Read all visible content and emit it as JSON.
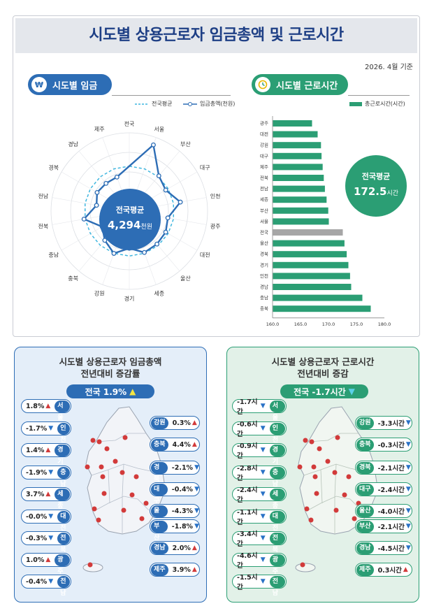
{
  "page_title": "시도별 상용근로자 임금총액 및 근로시간",
  "date_note": "2026. 4월 기준",
  "wage_section": {
    "label": "시도별 임금",
    "legend_avg": "전국평균",
    "legend_series": "임금총액(천원)",
    "center_label": "전국평균",
    "center_value": "4,294",
    "center_unit": "천원"
  },
  "hours_section": {
    "label": "시도별 근로시간",
    "legend_series": "총근로시간(시간)",
    "avg_label": "전국평균",
    "avg_value": "172.5",
    "avg_unit": "시간"
  },
  "chart_data": [
    {
      "type": "radar",
      "series": [
        {
          "name": "임금총액(천원)",
          "values": [
            4294,
            5600,
            4350,
            4150,
            4650,
            4000,
            4150,
            4200,
            4250,
            3900,
            4300,
            3950,
            3600,
            4350,
            3700,
            3900,
            3850,
            3850
          ]
        },
        {
          "name": "전국평균",
          "values": [
            4294,
            4294,
            4294,
            4294,
            4294,
            4294,
            4294,
            4294,
            4294,
            4294,
            4294,
            4294,
            4294,
            4294,
            4294,
            4294,
            4294,
            4294
          ]
        }
      ],
      "axes": [
        "전국",
        "서울",
        "부산",
        "대구",
        "인천",
        "광주",
        "대전",
        "울산",
        "세종",
        "경기",
        "강원",
        "충북",
        "충남",
        "전북",
        "전남",
        "경북",
        "경남",
        "제주"
      ],
      "ylim": [
        2000,
        6000
      ]
    },
    {
      "type": "bar",
      "orientation": "horizontal",
      "categories": [
        "광주",
        "대전",
        "강원",
        "대구",
        "제주",
        "전북",
        "전남",
        "세종",
        "부산",
        "서울",
        "전국",
        "울산",
        "경북",
        "경기",
        "인천",
        "경남",
        "충남",
        "충북"
      ],
      "values": [
        167.0,
        168.0,
        168.6,
        168.7,
        168.9,
        169.1,
        169.3,
        169.6,
        169.9,
        170.0,
        172.5,
        172.8,
        173.2,
        173.5,
        173.8,
        174.0,
        176.0,
        177.5
      ],
      "xlim": [
        160,
        180
      ],
      "xticks": [
        "160.0",
        "165.0",
        "170.0",
        "175.0",
        "180.0"
      ],
      "colors": {
        "default": "#2b9e74",
        "highlight": "#a6a6a6"
      }
    }
  ],
  "wage_change": {
    "title_line1": "시도별 상용근로자 임금총액",
    "title_line2": "전년대비 증감률",
    "total_label": "전국 1.9%",
    "left_tags": [
      {
        "value": "1.8%",
        "dir": "up",
        "region": "서울"
      },
      {
        "value": "-1.7%",
        "dir": "down",
        "region": "인천"
      },
      {
        "value": "1.4%",
        "dir": "up",
        "region": "경기"
      },
      {
        "value": "-1.9%",
        "dir": "down",
        "region": "충남"
      },
      {
        "value": "3.7%",
        "dir": "up",
        "region": "세종"
      },
      {
        "value": "-0.0%",
        "dir": "down",
        "region": "대전"
      },
      {
        "value": "-0.3%",
        "dir": "down",
        "region": "전북"
      },
      {
        "value": "1.0%",
        "dir": "up",
        "region": "광주"
      },
      {
        "value": "-0.4%",
        "dir": "down",
        "region": "전남"
      }
    ],
    "right_tags": [
      {
        "region": "강원",
        "value": "0.3%",
        "dir": "up"
      },
      {
        "region": "충북",
        "value": "4.4%",
        "dir": "up"
      },
      {
        "region": "경북",
        "value": "-2.1%",
        "dir": "down"
      },
      {
        "region": "대구",
        "value": "-0.4%",
        "dir": "down"
      },
      {
        "region": "울산",
        "value": "-4.3%",
        "dir": "down"
      },
      {
        "region": "부산",
        "value": "-1.8%",
        "dir": "down"
      },
      {
        "region": "경남",
        "value": "2.0%",
        "dir": "up"
      },
      {
        "region": "제주",
        "value": "3.9%",
        "dir": "up"
      }
    ]
  },
  "hours_change": {
    "title_line1": "시도별 상용근로자 근로시간",
    "title_line2": "전년대비 증감",
    "total_label": "전국 -1.7시간",
    "left_tags": [
      {
        "value": "-1.7시간",
        "dir": "down",
        "region": "서울"
      },
      {
        "value": "-0.6시간",
        "dir": "down",
        "region": "인천"
      },
      {
        "value": "-0.9시간",
        "dir": "down",
        "region": "경기"
      },
      {
        "value": "-2.8시간",
        "dir": "down",
        "region": "충남"
      },
      {
        "value": "-2.4시간",
        "dir": "down",
        "region": "세종"
      },
      {
        "value": "-1.1시간",
        "dir": "down",
        "region": "대전"
      },
      {
        "value": "-3.4시간",
        "dir": "down",
        "region": "전북"
      },
      {
        "value": "-4.6시간",
        "dir": "down",
        "region": "광주"
      },
      {
        "value": "-1.5시간",
        "dir": "down",
        "region": "전남"
      }
    ],
    "right_tags": [
      {
        "region": "강원",
        "value": "-3.3시간",
        "dir": "down"
      },
      {
        "region": "충북",
        "value": "-0.3시간",
        "dir": "down"
      },
      {
        "region": "경북",
        "value": "-2.1시간",
        "dir": "down"
      },
      {
        "region": "대구",
        "value": "-2.4시간",
        "dir": "down"
      },
      {
        "region": "울산",
        "value": "-4.0시간",
        "dir": "down"
      },
      {
        "region": "부산",
        "value": "-2.1시간",
        "dir": "down"
      },
      {
        "region": "경남",
        "value": "-4.5시간",
        "dir": "down"
      },
      {
        "region": "제주",
        "value": "0.3시간",
        "dir": "up"
      }
    ]
  },
  "colors": {
    "blue": "#2d6db5",
    "green": "#2b9e74",
    "up": "#d23a3a",
    "down": "#2a72c6",
    "gray_bar": "#a6a6a6"
  }
}
